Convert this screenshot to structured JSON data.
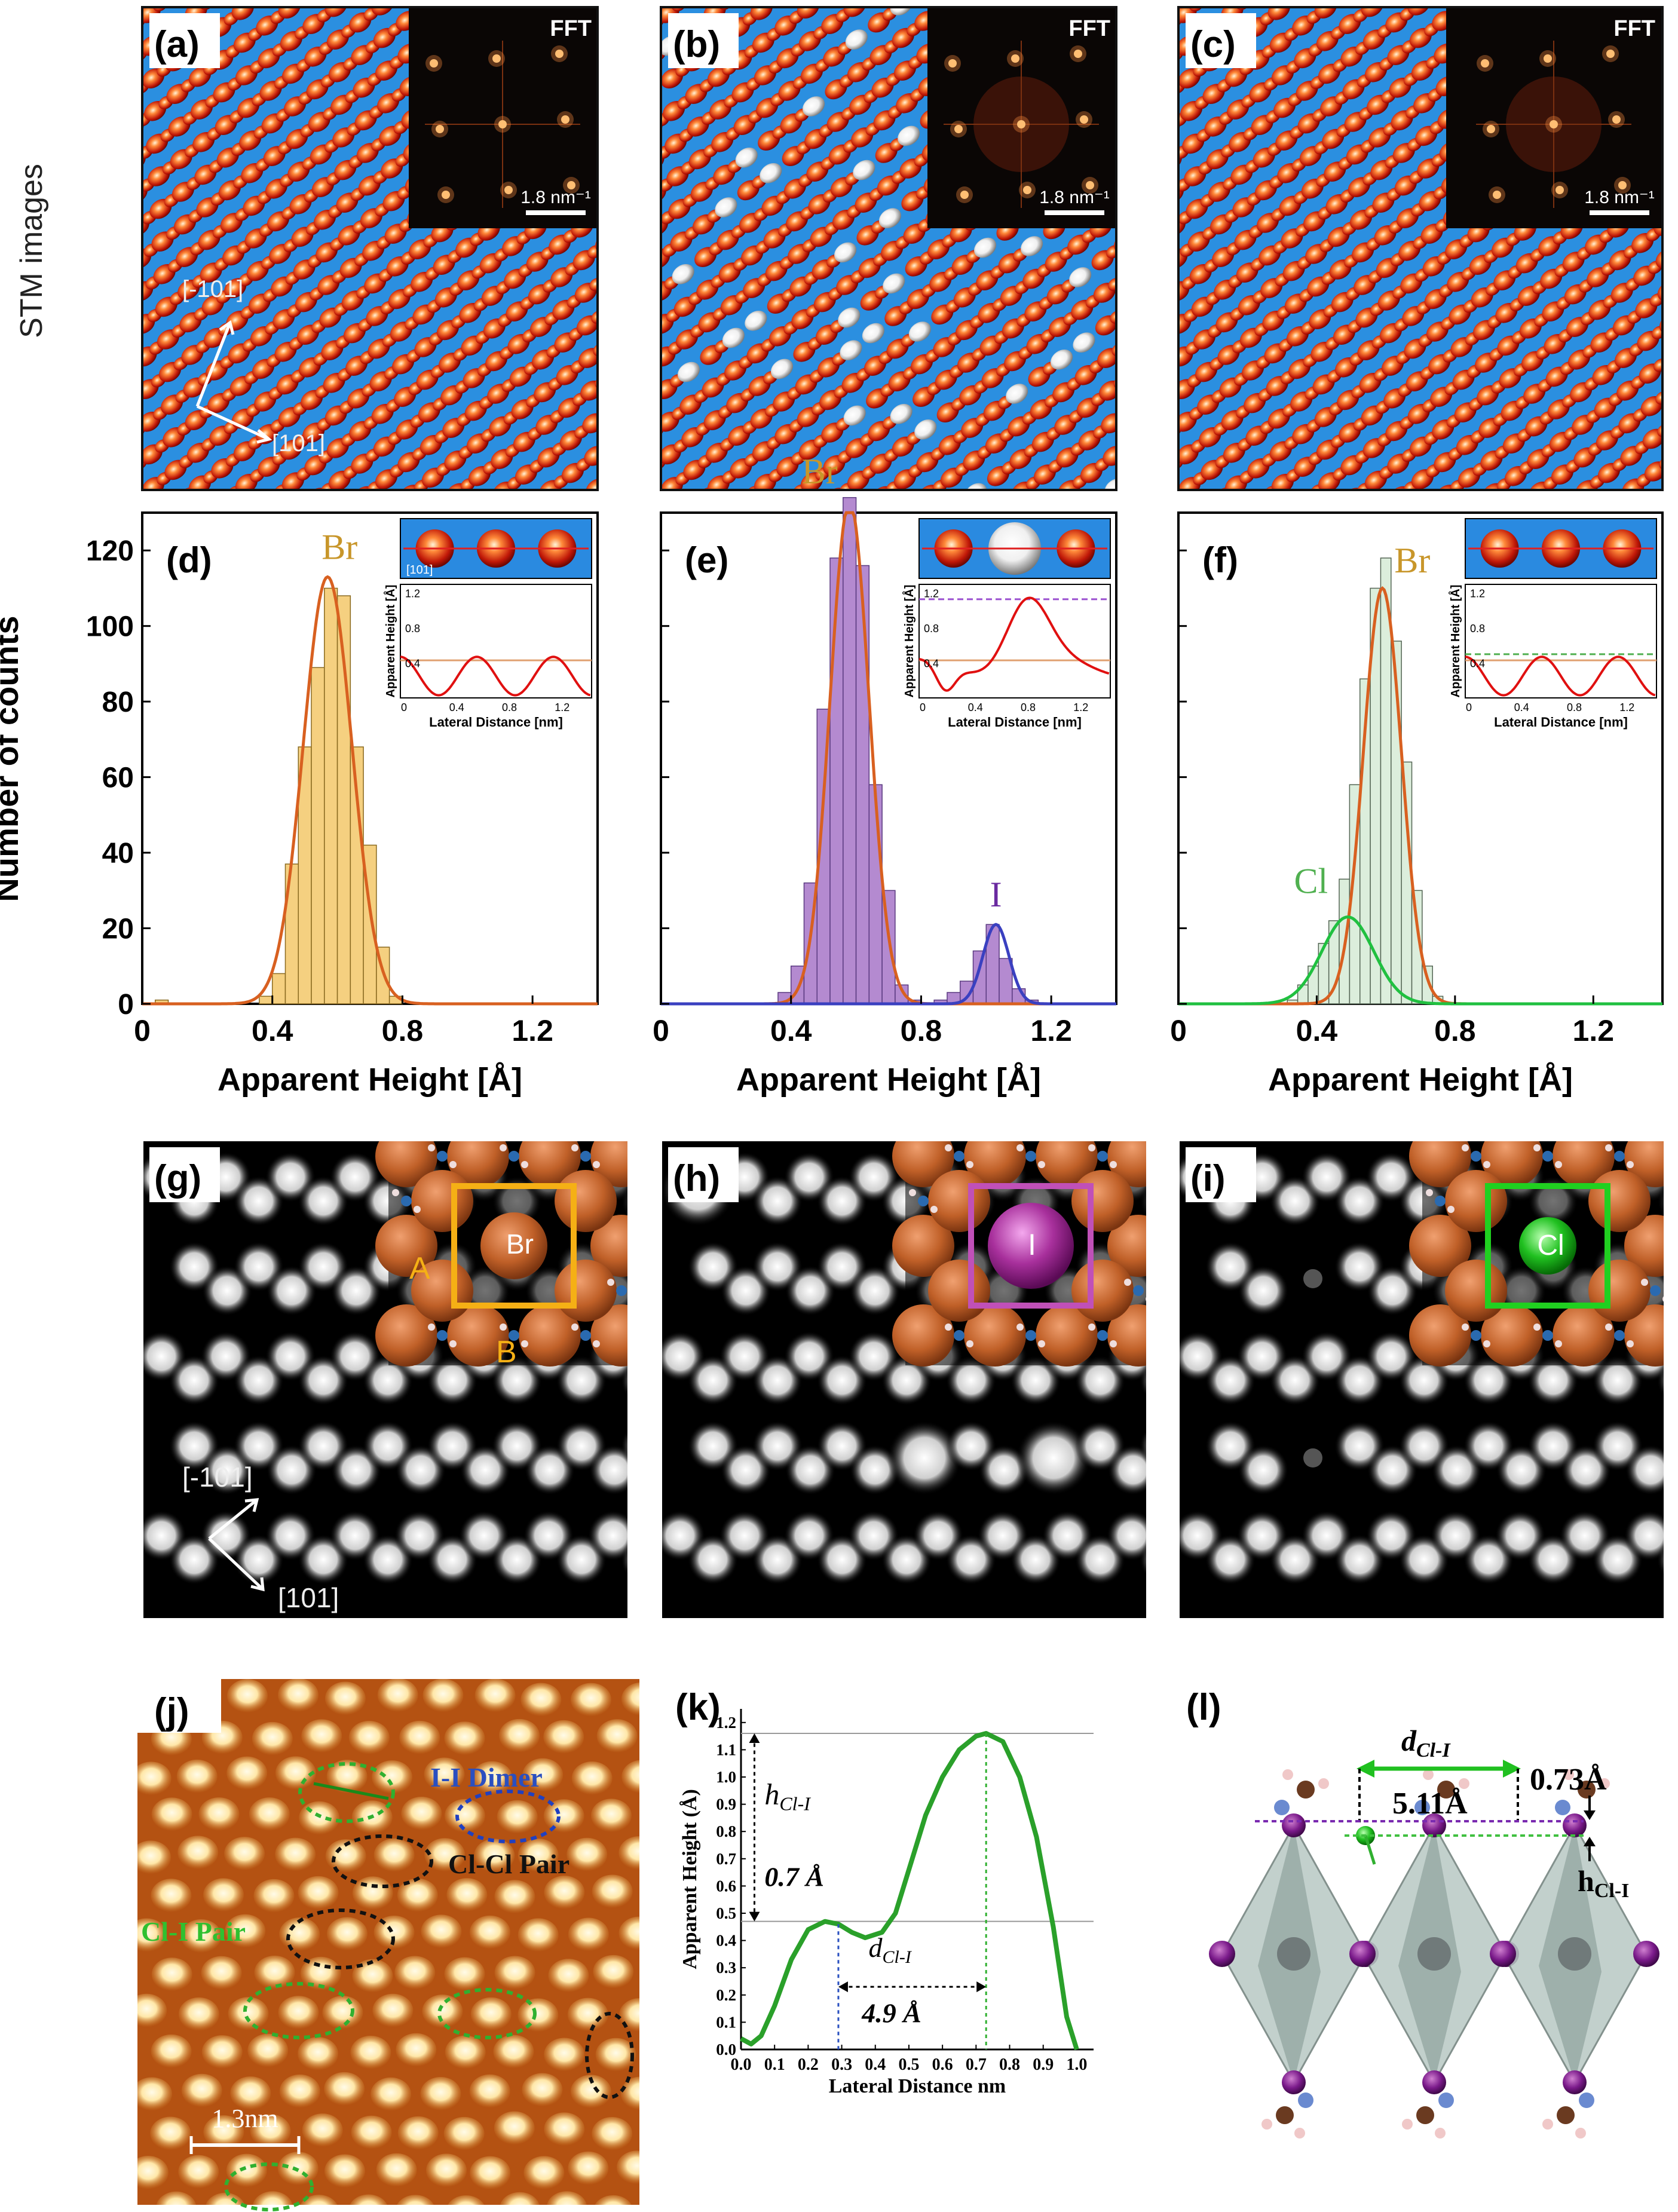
{
  "figure": {
    "row_label": "STM images",
    "panels": {
      "a": {
        "label": "(a)",
        "fft": "FFT",
        "scale": "1.8 nm⁻¹",
        "dir1": "[-101]",
        "dir2": "[101]"
      },
      "b": {
        "label": "(b)",
        "fft": "FFT",
        "scale": "1.8 nm⁻¹"
      },
      "c": {
        "label": "(c)",
        "fft": "FFT",
        "scale": "1.8 nm⁻¹"
      },
      "d": {
        "label": "(d)",
        "peak": "Br"
      },
      "e": {
        "label": "(e)",
        "peak1": "Br",
        "peak2": "I"
      },
      "f": {
        "label": "(f)",
        "peak1": "Br",
        "peak2": "Cl"
      },
      "g": {
        "label": "(g)",
        "atom": "Br",
        "site_a": "A",
        "site_b": "B",
        "dir1": "[-101]",
        "dir2": "[101]"
      },
      "h": {
        "label": "(h)",
        "atom": "I"
      },
      "i": {
        "label": "(i)",
        "atom": "Cl"
      },
      "j": {
        "label": "(j)",
        "dimer": "I-I Dimer",
        "clcl": "Cl-Cl Pair",
        "cli": "Cl-I Pair",
        "scale": "1.3nm"
      },
      "k": {
        "label": "(k)",
        "h_label": "h",
        "h_sub": "Cl-I",
        "h_value": "0.7 Å",
        "d_label": "d",
        "d_sub": "Cl-I",
        "d_value": "4.9 Å"
      },
      "l": {
        "label": "(l)",
        "d_label": "d",
        "d_sub": "Cl-I",
        "d_value": "5.11Å",
        "h_value": "0.73Å",
        "h_label": "h",
        "h_sub": "Cl-I"
      }
    },
    "hist_ylabel": "Number of counts",
    "hist_xlabel": "Apparent Height [Å]",
    "inset_ylabel": "Apparent Height [Å]",
    "inset_xlabel": "Lateral Distance [nm]",
    "inset_d_dir": "[101]",
    "k_ylabel": "Apparent Height (Å)",
    "k_xlabel": "Lateral Distance nm"
  },
  "chart_data": [
    {
      "type": "bar",
      "panel": "d",
      "xlabel": "Apparent Height [Å]",
      "ylabel": "Number of counts",
      "xlim": [
        0,
        1.4
      ],
      "ylim": [
        0,
        130
      ],
      "xticks": [
        0,
        0.4,
        0.8,
        1.2
      ],
      "yticks": [
        0,
        20,
        40,
        60,
        80,
        100,
        120
      ],
      "bin_width": 0.04,
      "x": [
        0.06,
        0.1,
        0.14,
        0.18,
        0.22,
        0.26,
        0.3,
        0.34,
        0.38,
        0.42,
        0.46,
        0.5,
        0.54,
        0.58,
        0.62,
        0.66,
        0.7,
        0.74,
        0.78,
        0.82,
        0.86,
        0.9
      ],
      "values": [
        1,
        0,
        0,
        0,
        0,
        0,
        0,
        0,
        2,
        8,
        37,
        68,
        89,
        110,
        108,
        68,
        42,
        15,
        2,
        0,
        0,
        0
      ],
      "fits": [
        {
          "name": "Br",
          "center": 0.57,
          "amplitude": 113,
          "sigma": 0.075
        }
      ]
    },
    {
      "type": "bar",
      "panel": "e",
      "xlabel": "Apparent Height [Å]",
      "xlim": [
        0,
        1.4
      ],
      "ylim": [
        0,
        130
      ],
      "xticks": [
        0,
        0.4,
        0.8,
        1.2
      ],
      "yticks": [
        0,
        20,
        40,
        60,
        80,
        100,
        120
      ],
      "bin_width": 0.04,
      "x": [
        0.38,
        0.42,
        0.46,
        0.5,
        0.54,
        0.58,
        0.62,
        0.66,
        0.7,
        0.74,
        0.78,
        0.82,
        0.86,
        0.9,
        0.94,
        0.98,
        1.02,
        1.06,
        1.1,
        1.14
      ],
      "values": [
        3,
        10,
        32,
        78,
        118,
        134,
        116,
        58,
        30,
        5,
        1,
        0,
        1,
        3,
        6,
        14,
        21,
        12,
        4,
        1
      ],
      "fits": [
        {
          "name": "Br",
          "center": 0.58,
          "amplitude": 133,
          "sigma": 0.06
        },
        {
          "name": "I",
          "center": 1.03,
          "amplitude": 21,
          "sigma": 0.04
        }
      ]
    },
    {
      "type": "bar",
      "panel": "f",
      "xlabel": "Apparent Height [Å]",
      "xlim": [
        0,
        1.4
      ],
      "ylim": [
        0,
        130
      ],
      "xticks": [
        0,
        0.4,
        0.8,
        1.2
      ],
      "yticks": [
        0,
        20,
        40,
        60,
        80,
        100,
        120
      ],
      "bin_width": 0.03,
      "x": [
        0.33,
        0.36,
        0.39,
        0.42,
        0.45,
        0.48,
        0.51,
        0.54,
        0.57,
        0.6,
        0.63,
        0.66,
        0.69,
        0.72,
        0.75
      ],
      "values": [
        1,
        5,
        10,
        16,
        22,
        33,
        58,
        86,
        110,
        118,
        96,
        64,
        30,
        10,
        2
      ],
      "fits": [
        {
          "name": "Br",
          "center": 0.59,
          "amplitude": 110,
          "sigma": 0.055
        },
        {
          "name": "Cl",
          "center": 0.49,
          "amplitude": 23,
          "sigma": 0.075
        }
      ]
    },
    {
      "type": "line",
      "panel": "k",
      "xlabel": "Lateral Distance nm",
      "ylabel": "Apparent Height (Å)",
      "xlim": [
        0,
        1.05
      ],
      "ylim": [
        0,
        1.25
      ],
      "xticks": [
        0.0,
        0.1,
        0.2,
        0.3,
        0.4,
        0.5,
        0.6,
        0.7,
        0.8,
        0.9,
        1.0
      ],
      "yticks": [
        0.0,
        0.1,
        0.2,
        0.3,
        0.4,
        0.5,
        0.6,
        0.7,
        0.8,
        0.9,
        1.0,
        1.1,
        1.2
      ],
      "x": [
        0.0,
        0.03,
        0.06,
        0.1,
        0.15,
        0.2,
        0.25,
        0.29,
        0.33,
        0.37,
        0.42,
        0.46,
        0.5,
        0.55,
        0.6,
        0.65,
        0.7,
        0.73,
        0.78,
        0.83,
        0.88,
        0.93,
        0.97,
        1.0
      ],
      "y": [
        0.04,
        0.02,
        0.05,
        0.16,
        0.33,
        0.44,
        0.47,
        0.46,
        0.43,
        0.41,
        0.43,
        0.5,
        0.66,
        0.86,
        1.0,
        1.1,
        1.15,
        1.16,
        1.13,
        1.0,
        0.78,
        0.45,
        0.12,
        0.0
      ],
      "reference_lines": [
        0.47,
        1.16
      ]
    }
  ]
}
